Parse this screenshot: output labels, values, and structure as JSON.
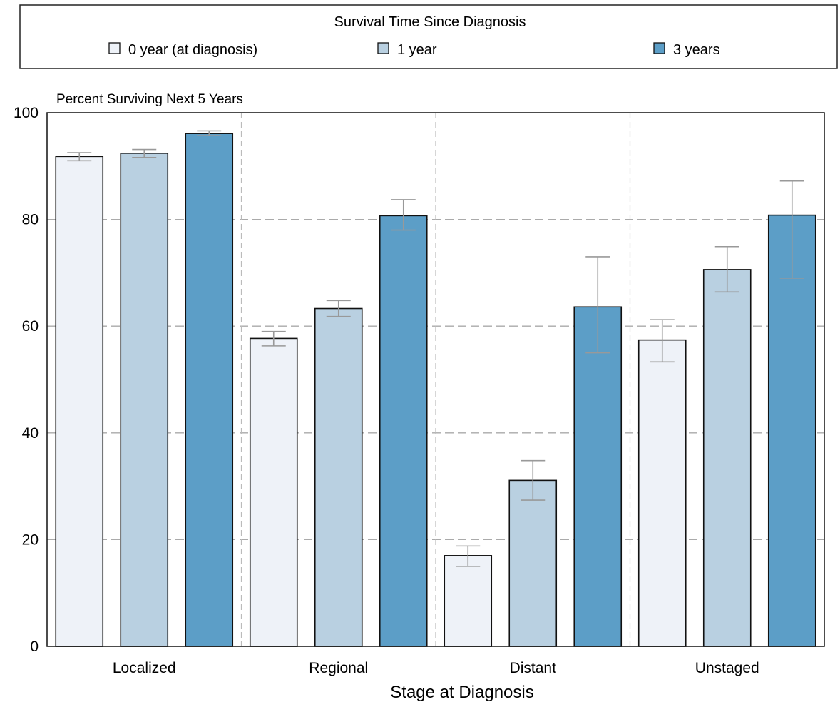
{
  "chart_data": {
    "type": "bar",
    "title": "",
    "legend_title": "Survival Time Since Diagnosis",
    "legend_position": "top",
    "ylabel": "Percent Surviving Next 5 Years",
    "xlabel": "Stage at Diagnosis",
    "ylim": [
      0,
      100
    ],
    "yticks": [
      0,
      20,
      40,
      60,
      80,
      100
    ],
    "categories": [
      "Localized",
      "Regional",
      "Distant",
      "Unstaged"
    ],
    "grid": true,
    "series": [
      {
        "name": "0 year (at diagnosis)",
        "color": "#eef2f8",
        "values": [
          91.8,
          57.7,
          17.0,
          57.4
        ],
        "error_low": [
          91.0,
          56.3,
          15.0,
          53.3
        ],
        "error_high": [
          92.5,
          59.0,
          18.8,
          61.2
        ]
      },
      {
        "name": "1 year",
        "color": "#b9d0e1",
        "values": [
          92.4,
          63.3,
          31.1,
          70.6
        ],
        "error_low": [
          91.6,
          61.8,
          27.4,
          66.4
        ],
        "error_high": [
          93.1,
          64.8,
          34.8,
          74.9
        ]
      },
      {
        "name": "3 years",
        "color": "#5c9ec7",
        "values": [
          96.1,
          80.7,
          63.6,
          80.8
        ],
        "error_low": [
          95.7,
          78.0,
          55.0,
          69.0
        ],
        "error_high": [
          96.6,
          83.7,
          73.0,
          87.2
        ]
      }
    ]
  }
}
